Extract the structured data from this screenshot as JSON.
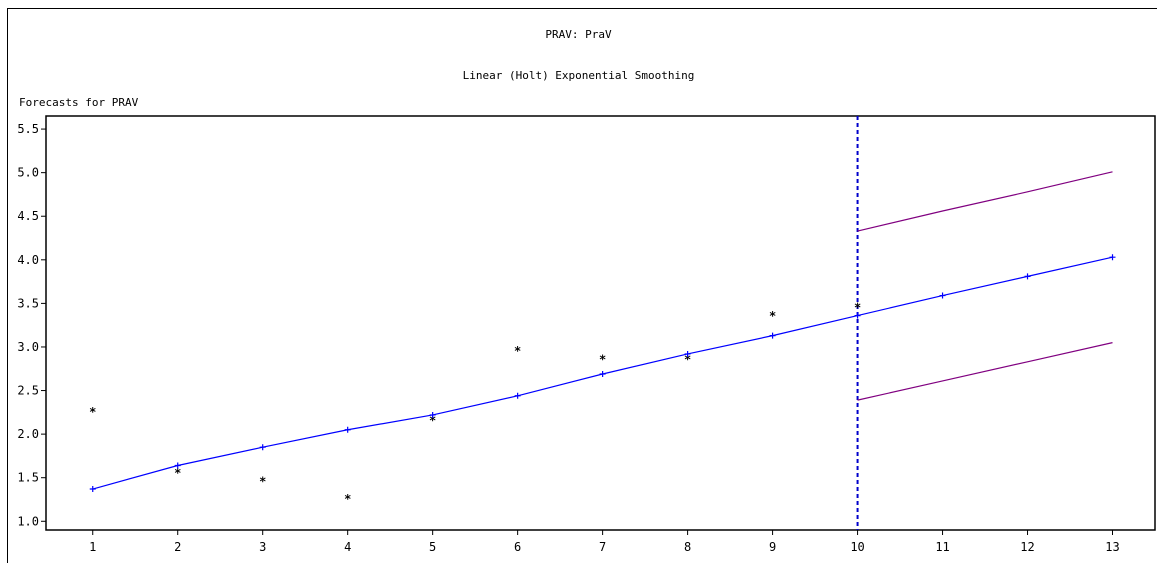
{
  "header": {
    "title": "PRAV: PraV",
    "subtitle": "Linear (Holt) Exponential Smoothing",
    "chart_heading": "Forecasts for PRAV"
  },
  "colors": {
    "fit_line": "#0000ff",
    "actual_marker": "#000000",
    "confidence_band": "#800080",
    "forecast_divider": "#0000cc"
  },
  "chart_data": {
    "type": "line",
    "title": "Linear (Holt) Exponential Smoothing",
    "xlabel": "",
    "ylabel": "",
    "x": [
      1,
      2,
      3,
      4,
      5,
      6,
      7,
      8,
      9,
      10,
      11,
      12,
      13
    ],
    "xlim": [
      0.45,
      13.5
    ],
    "ylim": [
      0.9,
      5.65
    ],
    "yticks": [
      1.0,
      1.5,
      2.0,
      2.5,
      3.0,
      3.5,
      4.0,
      4.5,
      5.0,
      5.5
    ],
    "ytick_labels": [
      "1.0",
      "1.5",
      "2.0",
      "2.5",
      "3.0",
      "3.5",
      "4.0",
      "4.5",
      "5.0",
      "5.5"
    ],
    "xtick_labels": [
      "1",
      "2",
      "3",
      "4",
      "5",
      "6",
      "7",
      "8",
      "9",
      "10",
      "11",
      "12",
      "13"
    ],
    "forecast_start": 10,
    "series": [
      {
        "kind": "actual",
        "marker": "*",
        "x": [
          1,
          2,
          3,
          4,
          5,
          6,
          7,
          8,
          9,
          10
        ],
        "values": [
          2.3,
          1.6,
          1.5,
          1.3,
          2.2,
          3.0,
          2.9,
          2.9,
          3.4,
          3.5
        ]
      },
      {
        "kind": "fitted_and_forecast",
        "marker": "+",
        "x": [
          1,
          2,
          3,
          4,
          5,
          6,
          7,
          8,
          9,
          10,
          11,
          12,
          13
        ],
        "values": [
          1.37,
          1.64,
          1.85,
          2.05,
          2.22,
          2.44,
          2.69,
          2.92,
          3.13,
          3.36,
          3.59,
          3.81,
          4.03
        ]
      },
      {
        "kind": "upper_confidence",
        "x": [
          10,
          11,
          12,
          13
        ],
        "values": [
          4.33,
          4.56,
          4.78,
          5.01
        ]
      },
      {
        "kind": "lower_confidence",
        "x": [
          10,
          11,
          12,
          13
        ],
        "values": [
          2.39,
          2.61,
          2.83,
          3.05
        ]
      }
    ]
  }
}
